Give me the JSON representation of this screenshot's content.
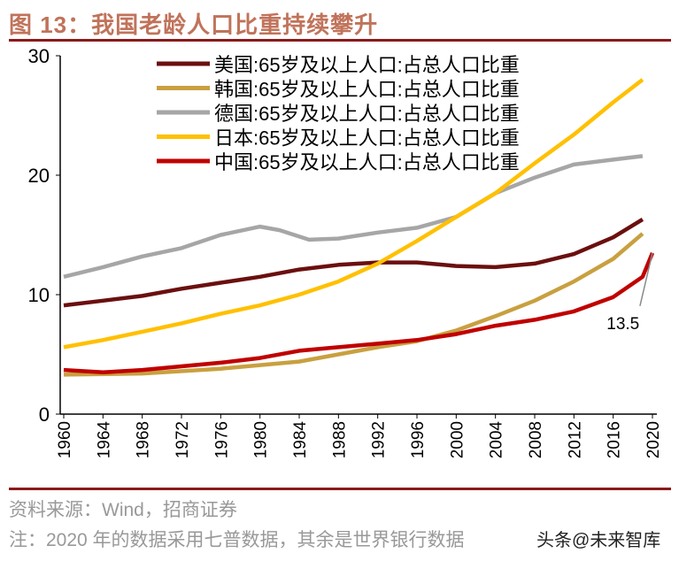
{
  "title": "图 13：我国老龄人口比重持续攀升",
  "source": "资料来源：Wind，招商证券",
  "note": "注：2020 年的数据采用七普数据，其余是世界银行数据",
  "watermark": "头条@未来智库",
  "chart_data": {
    "type": "line",
    "title": "",
    "xlabel": "",
    "ylabel": "",
    "ylim": [
      0,
      30
    ],
    "yticks": [
      "0",
      "10",
      "20",
      "30"
    ],
    "xticks": [
      "1960",
      "1964",
      "1968",
      "1972",
      "1976",
      "1980",
      "1984",
      "1988",
      "1992",
      "1996",
      "2000",
      "2004",
      "2008",
      "2012",
      "2016",
      "2020"
    ],
    "legend_position": "top",
    "grid": false,
    "annotation": "13.5",
    "series": [
      {
        "name": "美国:65岁及以上人口:占总人口比重",
        "color": "#6b0f0f",
        "x": [
          1960,
          1964,
          1968,
          1972,
          1976,
          1980,
          1984,
          1988,
          1992,
          1996,
          2000,
          2004,
          2008,
          2012,
          2016,
          2019
        ],
        "values": [
          9.1,
          9.5,
          9.9,
          10.5,
          11.0,
          11.5,
          12.1,
          12.5,
          12.7,
          12.7,
          12.4,
          12.3,
          12.6,
          13.4,
          14.8,
          16.3
        ]
      },
      {
        "name": "韩国:65岁及以上人口:占总人口比重",
        "color": "#c9a040",
        "x": [
          1960,
          1968,
          1976,
          1980,
          1984,
          1988,
          1992,
          1996,
          2000,
          2004,
          2008,
          2012,
          2016,
          2019
        ],
        "values": [
          3.3,
          3.4,
          3.8,
          4.1,
          4.4,
          5.0,
          5.6,
          6.1,
          7.0,
          8.2,
          9.5,
          11.1,
          13.0,
          15.1
        ]
      },
      {
        "name": "德国:65岁及以上人口:占总人口比重",
        "color": "#a6a6a6",
        "x": [
          1960,
          1964,
          1968,
          1972,
          1976,
          1980,
          1982,
          1985,
          1988,
          1992,
          1996,
          2000,
          2004,
          2008,
          2012,
          2016,
          2019
        ],
        "values": [
          11.5,
          12.3,
          13.2,
          13.9,
          15.0,
          15.7,
          15.4,
          14.6,
          14.7,
          15.2,
          15.6,
          16.5,
          18.5,
          19.8,
          20.9,
          21.3,
          21.6
        ]
      },
      {
        "name": "日本:65岁及以上人口:占总人口比重",
        "color": "#ffc000",
        "x": [
          1960,
          1964,
          1968,
          1972,
          1976,
          1980,
          1984,
          1988,
          1992,
          1996,
          2000,
          2004,
          2008,
          2012,
          2016,
          2019
        ],
        "values": [
          5.6,
          6.2,
          6.9,
          7.6,
          8.4,
          9.1,
          10.0,
          11.1,
          12.6,
          14.5,
          16.5,
          18.5,
          21.0,
          23.4,
          26.1,
          28.0
        ]
      },
      {
        "name": "中国:65岁及以上人口:占总人口比重",
        "color": "#c00000",
        "x": [
          1960,
          1964,
          1968,
          1972,
          1976,
          1980,
          1984,
          1988,
          1992,
          1996,
          2000,
          2004,
          2008,
          2012,
          2016,
          2019,
          2020
        ],
        "values": [
          3.7,
          3.5,
          3.7,
          4.0,
          4.3,
          4.7,
          5.3,
          5.6,
          5.9,
          6.2,
          6.7,
          7.4,
          7.9,
          8.6,
          9.8,
          11.5,
          13.5
        ]
      }
    ]
  }
}
